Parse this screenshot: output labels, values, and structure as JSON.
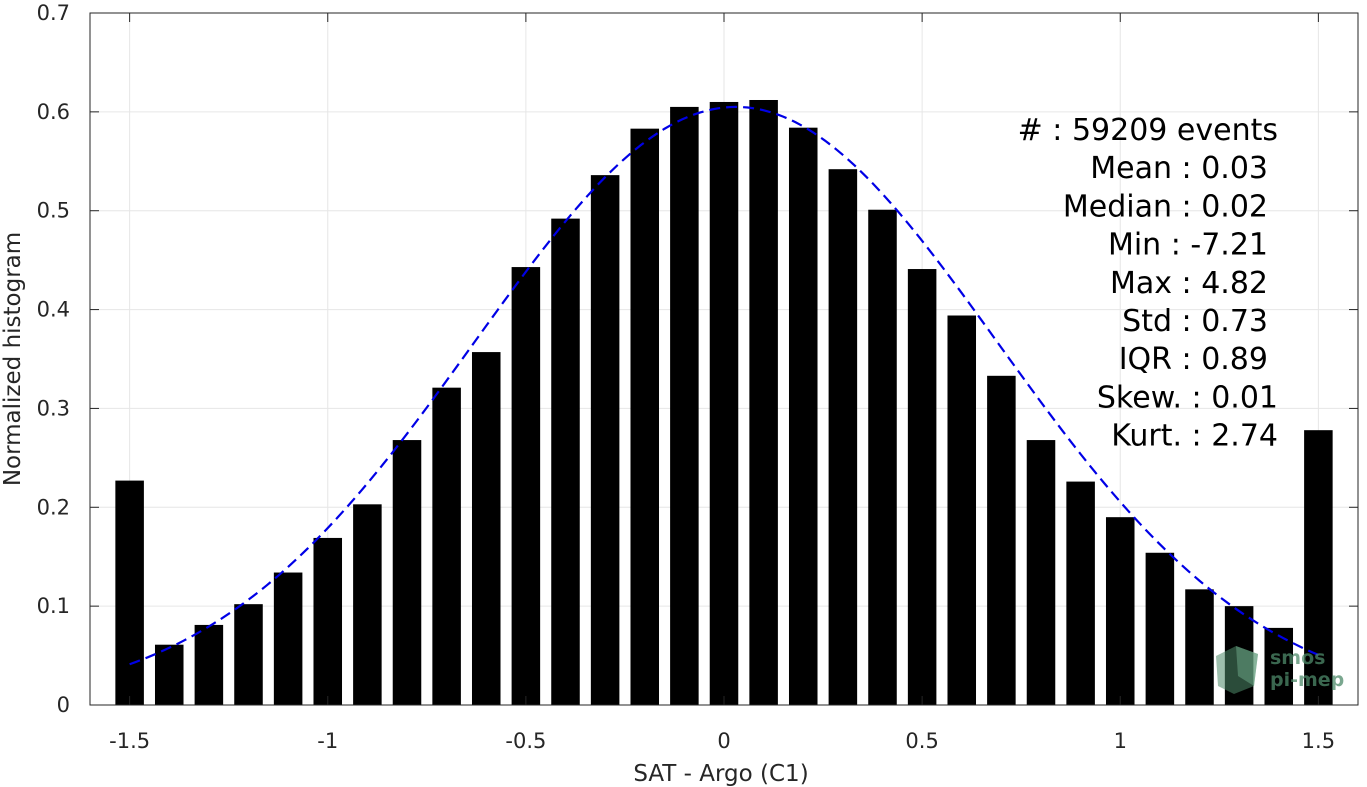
{
  "chart_data": {
    "type": "bar",
    "title": "",
    "xlabel": "SAT - Argo (C1)",
    "ylabel": "Normalized histogram",
    "xlim": [
      -1.6,
      1.6
    ],
    "ylim": [
      0,
      0.7
    ],
    "xticks": [
      -1.5,
      -1,
      -0.5,
      0,
      0.5,
      1,
      1.5
    ],
    "xtick_labels": [
      "-1.5",
      "-1",
      "-0.5",
      "0",
      "0.5",
      "1",
      "1.5"
    ],
    "yticks": [
      0,
      0.1,
      0.2,
      0.3,
      0.4,
      0.5,
      0.6,
      0.7
    ],
    "ytick_labels": [
      "0",
      "0.1",
      "0.2",
      "0.3",
      "0.4",
      "0.5",
      "0.6",
      "0.7"
    ],
    "grid": true,
    "bar_color": "#000000",
    "x": [
      -1.5,
      -1.4,
      -1.3,
      -1.2,
      -1.1,
      -1.0,
      -0.9,
      -0.8,
      -0.7,
      -0.6,
      -0.5,
      -0.4,
      -0.3,
      -0.2,
      -0.1,
      0.0,
      0.1,
      0.2,
      0.3,
      0.4,
      0.5,
      0.6,
      0.7,
      0.8,
      0.9,
      1.0,
      1.1,
      1.2,
      1.3,
      1.4,
      1.5
    ],
    "values": [
      0.227,
      0.061,
      0.081,
      0.102,
      0.134,
      0.169,
      0.203,
      0.268,
      0.321,
      0.357,
      0.443,
      0.492,
      0.536,
      0.583,
      0.605,
      0.61,
      0.612,
      0.584,
      0.542,
      0.501,
      0.441,
      0.394,
      0.333,
      0.268,
      0.226,
      0.19,
      0.154,
      0.117,
      0.1,
      0.078,
      0.278
    ],
    "fit": {
      "type": "gaussian",
      "mean": 0.03,
      "std": 0.66,
      "peak": 0.605,
      "x_range": [
        -1.5,
        1.5
      ],
      "color": "#0000e6",
      "style": "dashed"
    },
    "annotations": [
      "#  : 59209 events",
      "Mean : 0.03",
      "Median : 0.02",
      "Min : -7.21",
      "Max : 4.82",
      "Std : 0.73",
      "IQR : 0.89",
      "Skew. : 0.01",
      "Kurt. : 2.74"
    ],
    "watermark": [
      "smos",
      "pi-mep"
    ]
  }
}
